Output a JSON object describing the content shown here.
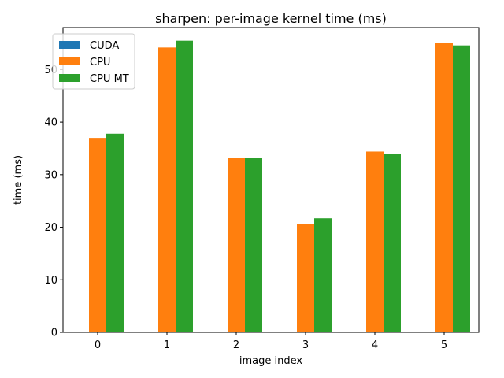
{
  "chart_data": {
    "type": "bar",
    "title": "sharpen: per-image kernel time (ms)",
    "xlabel": "image index",
    "ylabel": "time (ms)",
    "categories": [
      "0",
      "1",
      "2",
      "3",
      "4",
      "5"
    ],
    "series": [
      {
        "name": "CUDA",
        "values": [
          0.15,
          0.15,
          0.15,
          0.15,
          0.15,
          0.15
        ],
        "color": "#1f77b4"
      },
      {
        "name": "CPU",
        "values": [
          37.0,
          54.2,
          33.2,
          20.6,
          34.4,
          55.1
        ],
        "color": "#ff7f0e"
      },
      {
        "name": "CPU MT",
        "values": [
          37.8,
          55.5,
          33.2,
          21.7,
          34.0,
          54.6
        ],
        "color": "#2ca02c"
      }
    ],
    "ylim": [
      0,
      58
    ],
    "yticks": [
      0,
      10,
      20,
      30,
      40,
      50
    ],
    "grid": false,
    "legend_position": "upper-left"
  }
}
